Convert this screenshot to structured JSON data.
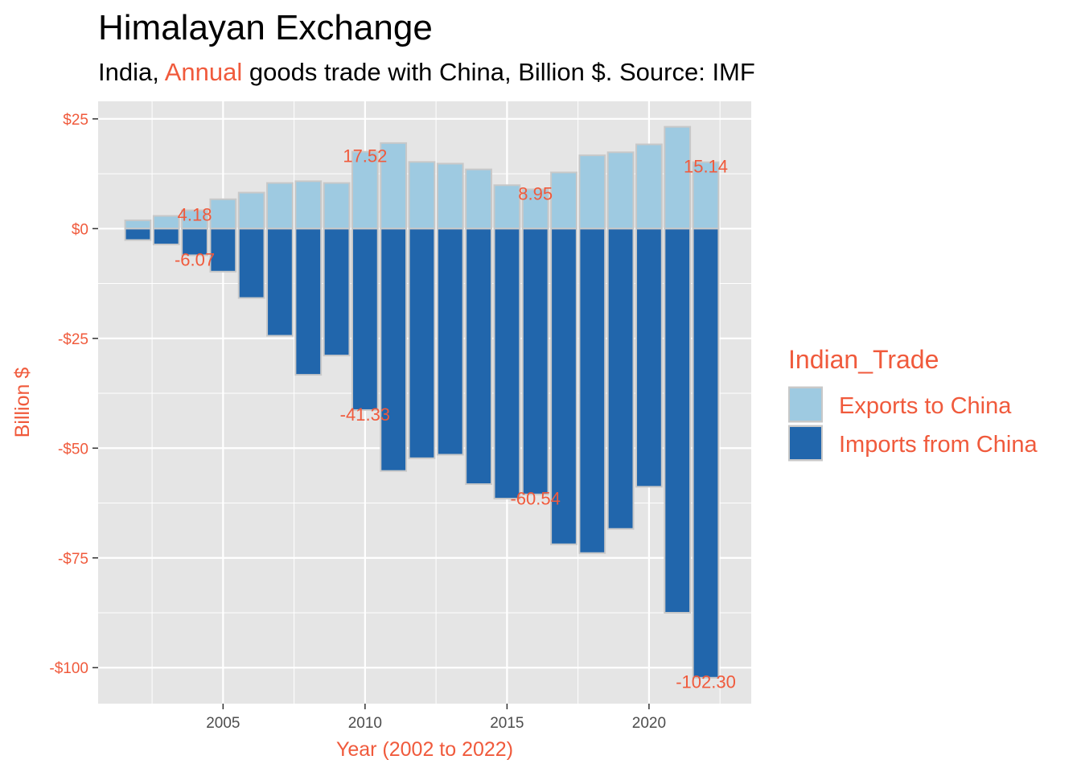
{
  "chart_data": {
    "type": "bar",
    "title": "Himalayan Exchange",
    "subtitle": {
      "before": "India, ",
      "highlight": "Annual",
      "after": " goods trade with China, Billion $. Source: IMF"
    },
    "xlabel": "Year (2002 to 2022)",
    "ylabel": "Billion $",
    "x": [
      2002,
      2003,
      2004,
      2005,
      2006,
      2007,
      2008,
      2009,
      2010,
      2011,
      2012,
      2013,
      2014,
      2015,
      2016,
      2017,
      2018,
      2019,
      2020,
      2021,
      2022
    ],
    "series": [
      {
        "name": "Exports to China",
        "color": "#9ecae1",
        "values": [
          1.9,
          2.9,
          4.18,
          6.7,
          8.2,
          10.4,
          10.8,
          10.4,
          17.52,
          19.5,
          15.2,
          14.8,
          13.5,
          9.9,
          8.95,
          12.8,
          16.7,
          17.4,
          19.2,
          23.2,
          15.14
        ]
      },
      {
        "name": "Imports from China",
        "color": "#2166ac",
        "values": [
          -2.6,
          -3.6,
          -6.07,
          -9.8,
          -15.8,
          -24.4,
          -33.3,
          -28.9,
          -41.33,
          -55.2,
          -52.3,
          -51.5,
          -58.2,
          -61.5,
          -60.54,
          -71.9,
          -73.9,
          -68.4,
          -58.8,
          -87.5,
          -102.3
        ]
      }
    ],
    "data_labels": [
      {
        "x": 2004,
        "text": "4.18"
      },
      {
        "x": 2004,
        "text": "-6.07"
      },
      {
        "x": 2010,
        "text": "17.52"
      },
      {
        "x": 2010,
        "text": "-41.33"
      },
      {
        "x": 2016,
        "text": "8.95"
      },
      {
        "x": 2016,
        "text": "-60.54"
      },
      {
        "x": 2022,
        "text": "15.14"
      },
      {
        "x": 2022,
        "text": "-102.30"
      }
    ],
    "xlim": [
      2000.6,
      2023.6
    ],
    "ylim": [
      -108.2,
      29.0
    ],
    "x_ticks": [
      2005,
      2010,
      2015,
      2020
    ],
    "x_tick_labels": [
      "2005",
      "2010",
      "2015",
      "2020"
    ],
    "y_ticks": [
      25,
      0,
      -25,
      -50,
      -75,
      -100
    ],
    "y_tick_labels": [
      "$25",
      "$0",
      "-$25",
      "-$50",
      "-$75",
      "-$100"
    ],
    "legend": {
      "title": "Indian_Trade",
      "position": "right"
    },
    "grid": true,
    "colors": {
      "panel": "#e5e5e5",
      "grid": "#ffffff",
      "bar_outline": "#c8c8c8",
      "accent_text": "#f05a3c",
      "tick_text": "#4d4d4d"
    }
  }
}
